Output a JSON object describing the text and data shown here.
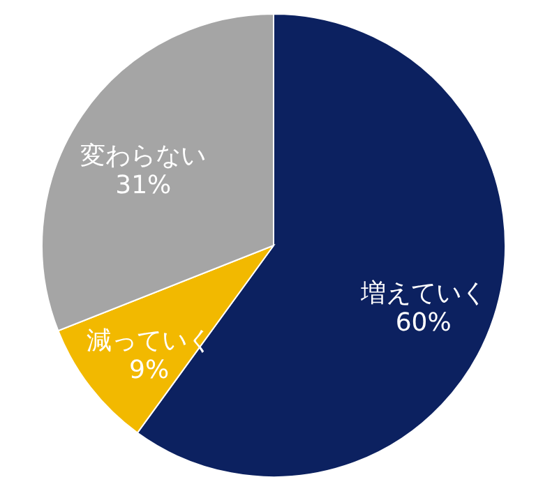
{
  "chart_data": {
    "type": "pie",
    "categories": [
      "増えていく",
      "減っていく",
      "変わらない"
    ],
    "values": [
      60,
      9,
      31
    ],
    "value_labels": [
      "60%",
      "9%",
      "31%"
    ],
    "colors": [
      "#0c2160",
      "#f2b900",
      "#a5a5a5"
    ],
    "legend": false
  }
}
